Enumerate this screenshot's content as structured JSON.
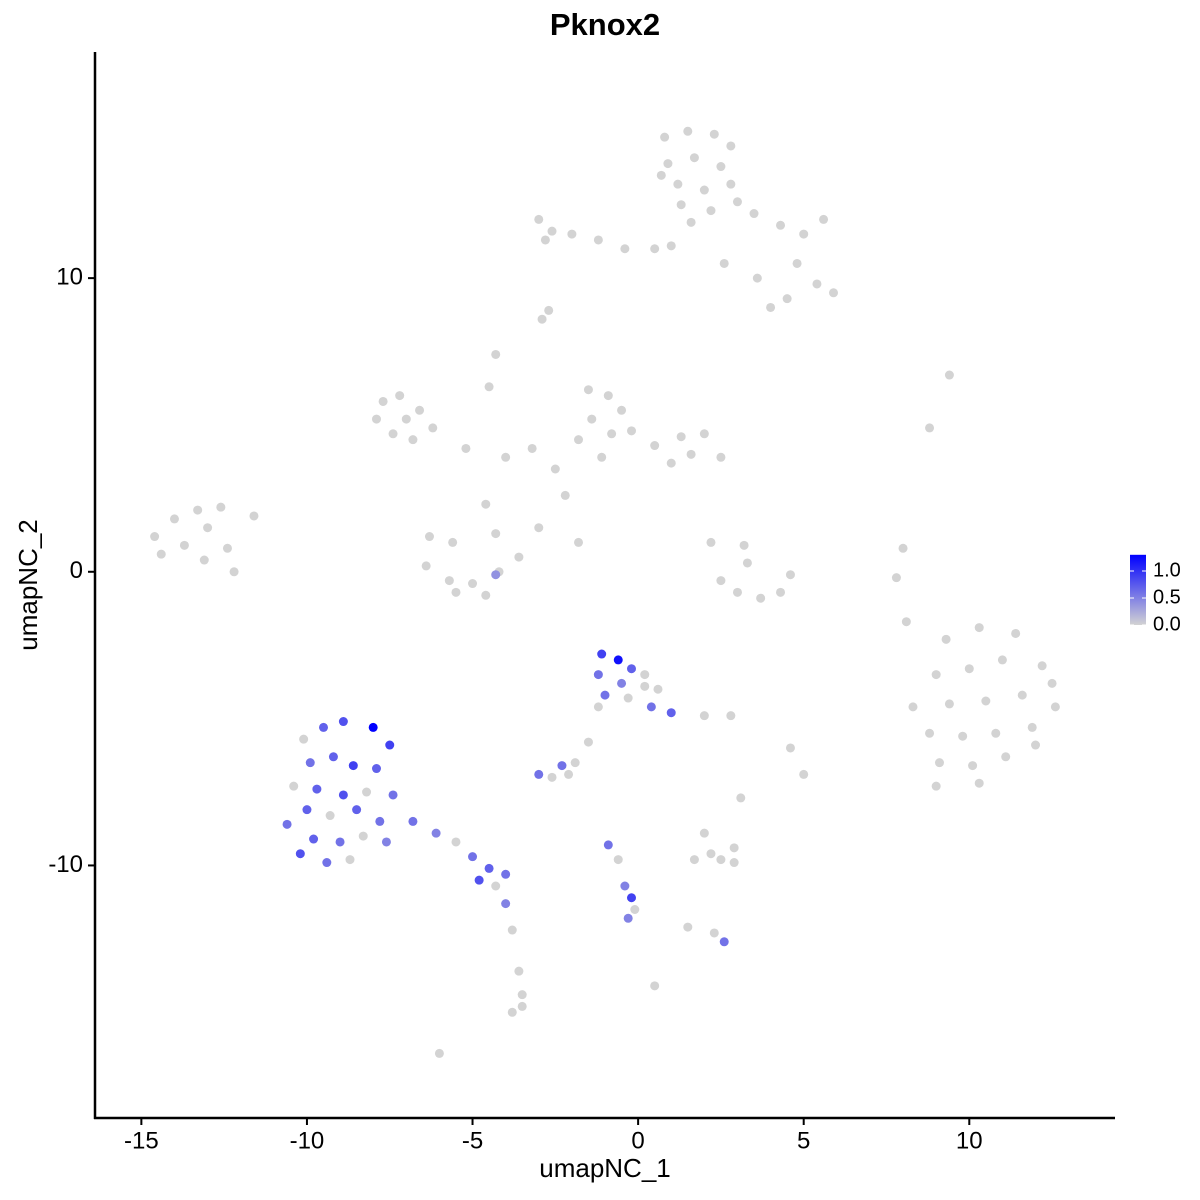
{
  "chart_data": {
    "type": "scatter",
    "title": "Pknox2",
    "xlabel": "umapNC_1",
    "ylabel": "umapNC_2",
    "xlim": [
      -16.4,
      14.4
    ],
    "ylim": [
      -18.6,
      17.7
    ],
    "xticks": [
      -15,
      -10,
      -5,
      0,
      5,
      10
    ],
    "yticks": [
      -10,
      0,
      10
    ],
    "low_color": "#d3d3d3",
    "high_color": "#0000ff",
    "color_lim": [
      0,
      1.3
    ],
    "color_ticks": [
      {
        "value": 0,
        "label": "0.0"
      },
      0.5,
      {
        "value": 1,
        "label": "1.0"
      }
    ],
    "x": [
      0.8,
      1.5,
      2.3,
      2.8,
      0.9,
      1.7,
      2.5,
      1.2,
      2.0,
      2.8,
      1.3,
      2.2,
      1.6,
      3.0,
      0.7,
      -3.0,
      -2.6,
      -2.0,
      -1.2,
      -0.4,
      0.5,
      1.0,
      -2.8,
      3.5,
      4.3,
      5.0,
      5.6,
      4.8,
      5.4,
      5.9,
      4.5,
      3.6,
      4.0,
      2.6,
      -2.7,
      -2.9,
      -7.7,
      -7.2,
      -6.6,
      -7.9,
      -7.4,
      -6.8,
      -6.2,
      -7.0,
      -4.3,
      -4.5,
      -5.2,
      -4.0,
      -3.2,
      -2.5,
      -2.2,
      -4.6,
      -3.0,
      -1.8,
      -1.5,
      -0.9,
      -0.5,
      -1.4,
      -0.8,
      -1.8,
      -0.2,
      0.5,
      1.3,
      2.0,
      1.6,
      2.5,
      1.0,
      -1.1,
      -14.6,
      -14.0,
      -13.3,
      -13.0,
      -13.7,
      -14.4,
      -13.1,
      -12.4,
      -12.2,
      -11.6,
      -12.6,
      -6.3,
      -5.6,
      -4.3,
      -6.4,
      -5.7,
      -5.0,
      -4.2,
      -3.6,
      -5.5,
      -4.6,
      -4.3,
      2.5,
      3.0,
      3.7,
      4.3,
      4.6,
      3.2,
      3.3,
      2.2,
      8.0,
      7.8,
      8.1,
      9.3,
      10.3,
      11.4,
      12.2,
      9.0,
      10.0,
      11.0,
      12.5,
      8.3,
      9.4,
      10.5,
      11.6,
      12.6,
      8.8,
      9.8,
      10.8,
      11.9,
      9.1,
      10.1,
      11.1,
      12.0,
      9.0,
      10.3,
      8.8,
      9.4,
      -1.1,
      -0.6,
      -0.2,
      -1.2,
      -0.5,
      0.2,
      0.6,
      -1.0,
      -0.3,
      0.4,
      1.0,
      -1.2,
      -1.5,
      -1.9,
      0.2,
      -3.0,
      -2.6,
      -2.1,
      -2.3,
      2.0,
      2.8,
      -10.1,
      -9.5,
      -8.9,
      -8.0,
      -7.5,
      -9.9,
      -9.2,
      -8.6,
      -7.9,
      -10.4,
      -9.7,
      -8.9,
      -8.2,
      -7.4,
      -10.0,
      -9.3,
      -8.5,
      -7.8,
      -10.6,
      -9.8,
      -9.0,
      -8.3,
      -7.6,
      -10.2,
      -9.4,
      -8.7,
      -6.8,
      -6.1,
      -5.5,
      -5.0,
      -4.5,
      -4.0,
      -4.8,
      -4.3,
      -4.0,
      -3.8,
      -3.6,
      -3.5,
      -3.8,
      -3.5,
      -6.0,
      -0.9,
      -0.6,
      -0.4,
      -0.2,
      -0.3,
      -0.1,
      0.5,
      1.7,
      2.2,
      2.9,
      2.5,
      2.0,
      2.9,
      2.3,
      2.6,
      1.5,
      5.0,
      4.6,
      3.1
    ],
    "y": [
      14.8,
      15,
      14.9,
      14.5,
      13.9,
      14.1,
      13.8,
      13.2,
      13.0,
      13.2,
      12.5,
      12.3,
      11.9,
      12.6,
      13.5,
      12.0,
      11.6,
      11.5,
      11.3,
      11.0,
      11.0,
      11.1,
      11.3,
      12.2,
      11.8,
      11.5,
      12.0,
      10.5,
      9.8,
      9.5,
      9.3,
      10.0,
      9.0,
      10.5,
      8.9,
      8.6,
      5.8,
      6.0,
      5.5,
      5.2,
      4.7,
      4.5,
      4.9,
      5.2,
      7.4,
      6.3,
      4.2,
      3.9,
      4.2,
      3.5,
      2.6,
      2.3,
      1.5,
      1.0,
      6.2,
      6.0,
      5.5,
      5.2,
      4.7,
      4.5,
      4.8,
      4.3,
      4.6,
      4.7,
      4.0,
      3.9,
      3.7,
      3.9,
      1.2,
      1.8,
      2.1,
      1.5,
      0.9,
      0.6,
      0.4,
      0.8,
      0.0,
      1.9,
      2.2,
      1.2,
      1.0,
      1.3,
      0.2,
      -0.3,
      -0.4,
      0.0,
      0.5,
      -0.7,
      -0.8,
      -0.1,
      -0.3,
      -0.7,
      -0.9,
      -0.7,
      -0.1,
      0.9,
      0.3,
      1.0,
      0.8,
      -0.2,
      -1.7,
      -2.3,
      -1.9,
      -2.1,
      -3.2,
      -3.5,
      -3.3,
      -3.0,
      -3.8,
      -4.6,
      -4.5,
      -4.4,
      -4.2,
      -4.6,
      -5.5,
      -5.6,
      -5.5,
      -5.3,
      -6.5,
      -6.6,
      -6.3,
      -5.9,
      -7.3,
      -7.2,
      4.9,
      6.7,
      -2.8,
      -3.0,
      -3.3,
      -3.5,
      -3.8,
      -3.5,
      -4.0,
      -4.2,
      -4.3,
      -4.6,
      -4.8,
      -4.6,
      -5.8,
      -6.5,
      -3.9,
      -6.9,
      -7.0,
      -6.9,
      -6.6,
      -4.9,
      -4.9,
      -5.7,
      -5.3,
      -5.1,
      -5.3,
      -5.9,
      -6.5,
      -6.3,
      -6.6,
      -6.7,
      -7.3,
      -7.4,
      -7.6,
      -7.5,
      -7.6,
      -8.1,
      -8.3,
      -8.1,
      -8.5,
      -8.6,
      -9.1,
      -9.2,
      -9.0,
      -9.2,
      -9.6,
      -9.9,
      -9.8,
      -8.5,
      -8.9,
      -9.2,
      -9.7,
      -10.1,
      -10.3,
      -10.5,
      -10.7,
      -11.3,
      -12.2,
      -13.6,
      -14.4,
      -15.0,
      -14.8,
      -16.4,
      -9.3,
      -9.8,
      -10.7,
      -11.1,
      -11.8,
      -11.5,
      -14.1,
      -9.8,
      -9.6,
      -9.4,
      -9.8,
      -8.9,
      -9.9,
      -12.3,
      -12.6,
      -12.1,
      -6.9,
      -6.0,
      -7.7
    ],
    "values": [
      0,
      0,
      0,
      0,
      0,
      0,
      0,
      0,
      0,
      0,
      0,
      0,
      0,
      0,
      0,
      0,
      0,
      0,
      0,
      0,
      0,
      0,
      0,
      0,
      0,
      0,
      0,
      0,
      0,
      0,
      0,
      0,
      0,
      0,
      0,
      0,
      0,
      0,
      0,
      0,
      0,
      0,
      0,
      0,
      0,
      0,
      0,
      0,
      0,
      0,
      0,
      0,
      0,
      0,
      0,
      0,
      0,
      0,
      0,
      0,
      0,
      0,
      0,
      0,
      0,
      0,
      0,
      0,
      0,
      0,
      0,
      0,
      0,
      0,
      0,
      0,
      0,
      0,
      0,
      0,
      0,
      0,
      0,
      0,
      0,
      0,
      0,
      0,
      0,
      0.4,
      0,
      0,
      0,
      0,
      0,
      0,
      0,
      0,
      0,
      0,
      0,
      0,
      0,
      0,
      0,
      0,
      0,
      0,
      0,
      0,
      0,
      0,
      0,
      0,
      0,
      0,
      0,
      0,
      0,
      0,
      0,
      0,
      0,
      0,
      0,
      0,
      0.9,
      1.2,
      0.7,
      0.6,
      0.5,
      0,
      0,
      0.6,
      0,
      0.6,
      0.7,
      0,
      0,
      0,
      0,
      0.6,
      0,
      0,
      0.6,
      0,
      0,
      0,
      0.7,
      0.8,
      1.3,
      0.9,
      0.6,
      0.7,
      0.9,
      0.7,
      0,
      0.7,
      0.8,
      0,
      0.6,
      0.7,
      0,
      0.7,
      0.6,
      0.6,
      0.7,
      0.6,
      0,
      0.5,
      0.8,
      0.6,
      0,
      0.6,
      0.5,
      0,
      0.6,
      0.7,
      0.6,
      0.8,
      0,
      0.5,
      0,
      0,
      0,
      0,
      0,
      0,
      0.6,
      0,
      0.5,
      0.9,
      0.5,
      0,
      0,
      0,
      0,
      0,
      0,
      0,
      0,
      0,
      0.6,
      0,
      0,
      0,
      0
    ]
  }
}
